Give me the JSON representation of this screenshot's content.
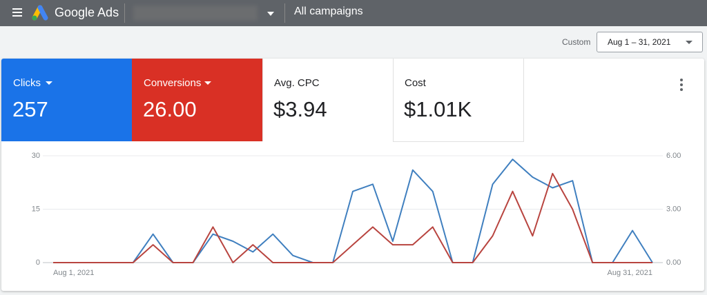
{
  "header": {
    "product": "Google Ads",
    "page": "All campaigns"
  },
  "date_range": {
    "label": "Custom",
    "value": "Aug 1 – 31, 2021"
  },
  "scorecards": [
    {
      "label": "Clicks",
      "value": "257"
    },
    {
      "label": "Conversions",
      "value": "26.00"
    },
    {
      "label": "Avg. CPC",
      "value": "$3.94"
    },
    {
      "label": "Cost",
      "value": "$1.01K"
    }
  ],
  "chart_data": {
    "type": "line",
    "categories": [
      "Aug 1, 2021",
      null,
      null,
      null,
      null,
      null,
      null,
      null,
      null,
      null,
      null,
      null,
      null,
      null,
      null,
      null,
      null,
      null,
      null,
      null,
      null,
      null,
      null,
      null,
      null,
      null,
      null,
      null,
      null,
      null,
      "Aug 31, 2021"
    ],
    "series": [
      {
        "name": "Clicks",
        "color": "#3f7fbf",
        "values": [
          0,
          0,
          0,
          0,
          0,
          8,
          0,
          0,
          8,
          6,
          3,
          8,
          2,
          0,
          0,
          20,
          22,
          6,
          26,
          20,
          0,
          0,
          22,
          29,
          24,
          21,
          23,
          0,
          0,
          9,
          0
        ]
      },
      {
        "name": "Conversions",
        "color": "#b8443f",
        "axis": "y2",
        "values": [
          0,
          0,
          0,
          0,
          0,
          1,
          0,
          0,
          2,
          0,
          1,
          0,
          0,
          0,
          0,
          1,
          2,
          1,
          1,
          2,
          0,
          0,
          1.5,
          4,
          1.5,
          5,
          3,
          0,
          0,
          0,
          0
        ]
      }
    ],
    "ylim": [
      0,
      30
    ],
    "yticks": [
      0,
      15,
      30
    ],
    "y2lim": [
      0,
      6
    ],
    "y2ticks": [
      {
        "value": 0,
        "label": "0.00"
      },
      {
        "value": 3,
        "label": "3.00"
      },
      {
        "value": 6,
        "label": "6.00"
      }
    ],
    "grid": true
  }
}
